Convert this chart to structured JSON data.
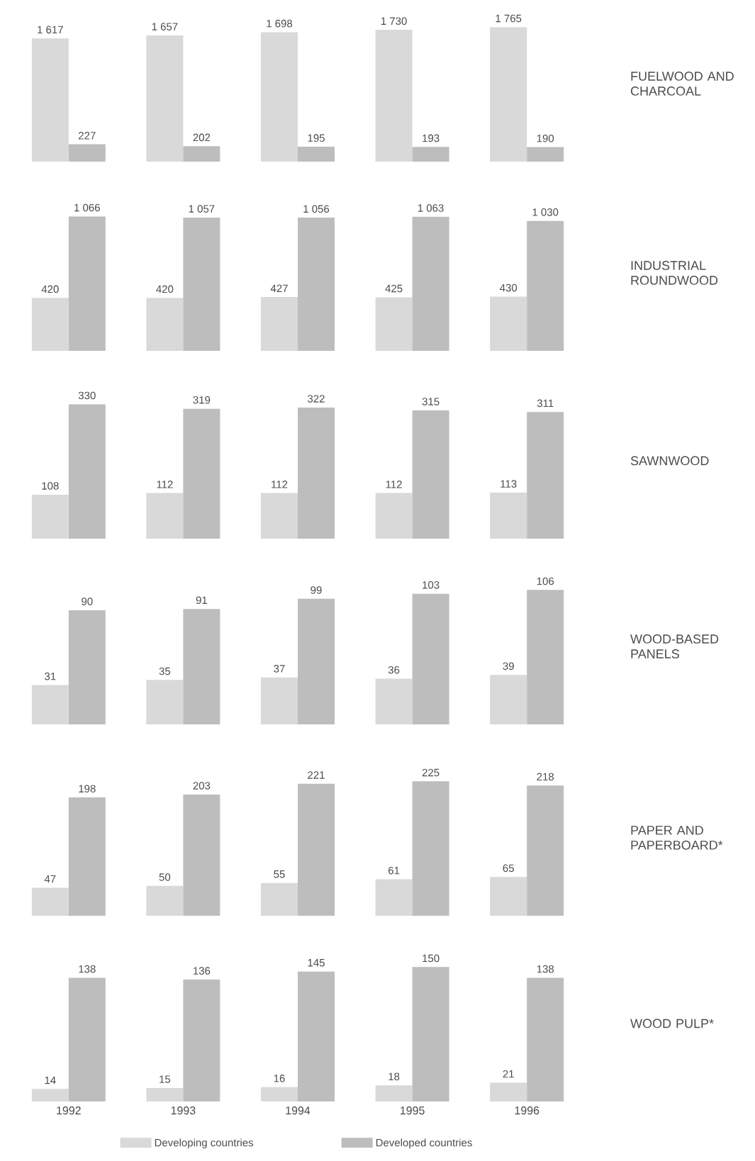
{
  "chart_data": [
    {
      "type": "bar",
      "ylabel": "FUELWOOD AND CHARCOAL",
      "categories": [
        null,
        null,
        null,
        null,
        null
      ],
      "data_labels": true,
      "series": [
        {
          "color": "#d9d9d9",
          "values": [
            1617,
            1657,
            1698,
            1730,
            1765
          ],
          "value_labels": [
            "1 617",
            "1 657",
            "1 698",
            "1 730",
            "1 765"
          ]
        },
        {
          "color": "#bdbdbd",
          "values": [
            227,
            202,
            195,
            193,
            190
          ]
        }
      ]
    },
    {
      "type": "bar",
      "ylabel": "INDUSTRIAL ROUNDWOOD",
      "categories": [
        null,
        null,
        null,
        null,
        null
      ],
      "data_labels": true,
      "series": [
        {
          "color": "#d9d9d9",
          "values": [
            420,
            420,
            427,
            425,
            430
          ]
        },
        {
          "color": "#bdbdbd",
          "values": [
            1066,
            1057,
            1056,
            1063,
            1030
          ],
          "value_labels": [
            "1 066",
            "1 057",
            "1 056",
            "1 063",
            "1 030"
          ]
        }
      ]
    },
    {
      "type": "bar",
      "ylabel": "SAWNWOOD",
      "categories": [
        null,
        null,
        null,
        null,
        null
      ],
      "data_labels": true,
      "series": [
        {
          "color": "#d9d9d9",
          "values": [
            108,
            112,
            112,
            112,
            113
          ]
        },
        {
          "color": "#bdbdbd",
          "values": [
            330,
            319,
            322,
            315,
            311
          ]
        }
      ]
    },
    {
      "type": "bar",
      "ylabel": "WOOD-BASED PANELS",
      "categories": [
        null,
        null,
        null,
        null,
        null
      ],
      "data_labels": true,
      "series": [
        {
          "color": "#d9d9d9",
          "values": [
            31,
            35,
            37,
            36,
            39
          ]
        },
        {
          "color": "#bdbdbd",
          "values": [
            90,
            91,
            99,
            103,
            106
          ]
        }
      ]
    },
    {
      "type": "bar",
      "ylabel": "PAPER AND PAPERBOARD*",
      "categories": [
        null,
        null,
        null,
        null,
        null
      ],
      "data_labels": true,
      "series": [
        {
          "color": "#d9d9d9",
          "values": [
            47,
            50,
            55,
            61,
            65
          ]
        },
        {
          "color": "#bdbdbd",
          "values": [
            198,
            203,
            221,
            225,
            218
          ]
        }
      ]
    },
    {
      "type": "bar",
      "ylabel": "WOOD PULP*",
      "categories": [
        "1992",
        "1993",
        "1994",
        "1995",
        "1996"
      ],
      "data_labels": true,
      "legend": "bottom",
      "series": [
        {
          "name": "Developing countries",
          "color": "#d9d9d9",
          "values": [
            14,
            15,
            16,
            18,
            21
          ]
        },
        {
          "name": "Developed countries",
          "color": "#bdbdbd",
          "values": [
            138,
            136,
            145,
            150,
            138
          ]
        }
      ]
    }
  ]
}
